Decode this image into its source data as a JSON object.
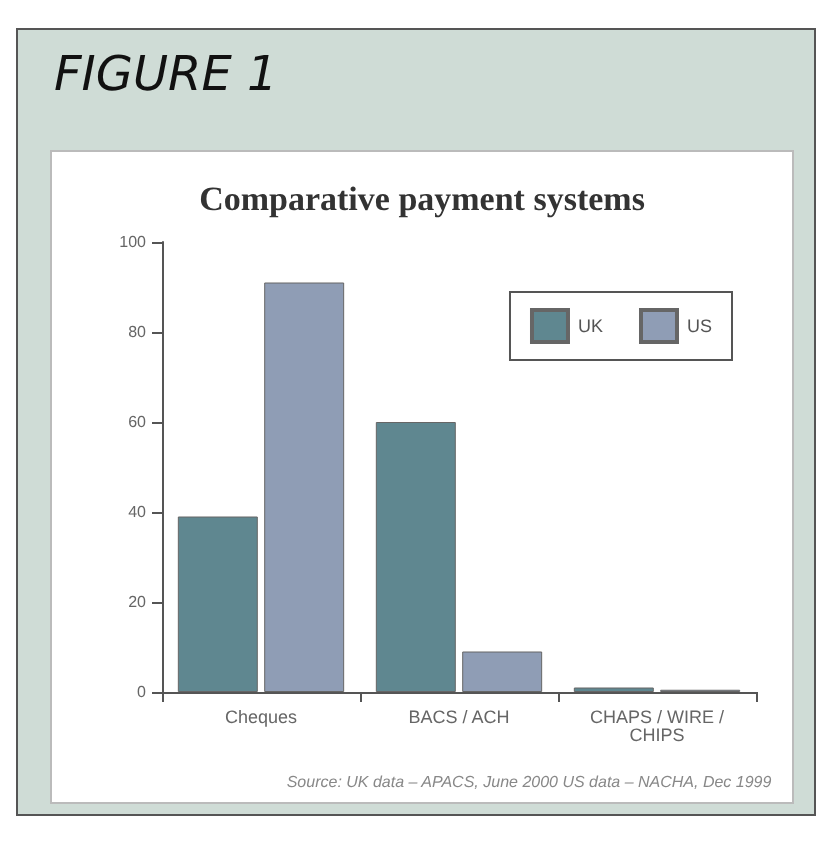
{
  "chart_data": {
    "type": "bar",
    "title": "FIGURE 1",
    "subtitle": "Comparative payment systems",
    "categories": [
      "Cheques",
      "BACS / ACH",
      "CHAPS / WIRE / CHIPS"
    ],
    "series": [
      {
        "name": "UK",
        "color": "#5f8790",
        "values": [
          39,
          60,
          1
        ]
      },
      {
        "name": "US",
        "color": "#8f9db5",
        "values": [
          91,
          9,
          0.5
        ]
      }
    ],
    "ylim": [
      0,
      100
    ],
    "yticks": [
      0,
      20,
      40,
      60,
      80,
      100
    ],
    "grid": false,
    "legend": "top right",
    "annotations": [
      "Source: UK data – APACS, June 2000 US data – NACHA, Dec 1999"
    ]
  }
}
